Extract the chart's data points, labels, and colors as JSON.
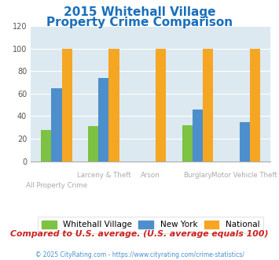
{
  "title_line1": "2015 Whitehall Village",
  "title_line2": "Property Crime Comparison",
  "title_color": "#1a6fbb",
  "categories": [
    "All Property Crime",
    "Larceny & Theft",
    "Arson",
    "Burglary",
    "Motor Vehicle Theft"
  ],
  "top_labels": [
    "",
    "Larceny & Theft",
    "Arson",
    "Burglary",
    "Motor Vehicle Theft"
  ],
  "bottom_labels": [
    "All Property Crime",
    "",
    "Arson",
    "",
    "Motor Vehicle Theft"
  ],
  "whitehall": [
    28,
    31,
    0,
    32,
    0
  ],
  "newyork": [
    65,
    74,
    0,
    46,
    35
  ],
  "national": [
    100,
    100,
    100,
    100,
    100
  ],
  "colors": {
    "whitehall": "#7dc242",
    "newyork": "#4d8fcc",
    "national": "#f5a623"
  },
  "ylim": [
    0,
    120
  ],
  "yticks": [
    0,
    20,
    40,
    60,
    80,
    100,
    120
  ],
  "plot_bg": "#dce9f0",
  "legend_labels": [
    "Whitehall Village",
    "New York",
    "National"
  ],
  "footer_text": "Compared to U.S. average. (U.S. average equals 100)",
  "copyright_text": "© 2025 CityRating.com - https://www.cityrating.com/crime-statistics/",
  "footer_color": "#cc2222",
  "copyright_color": "#4d8fcc",
  "label_color": "#aaaaaa"
}
